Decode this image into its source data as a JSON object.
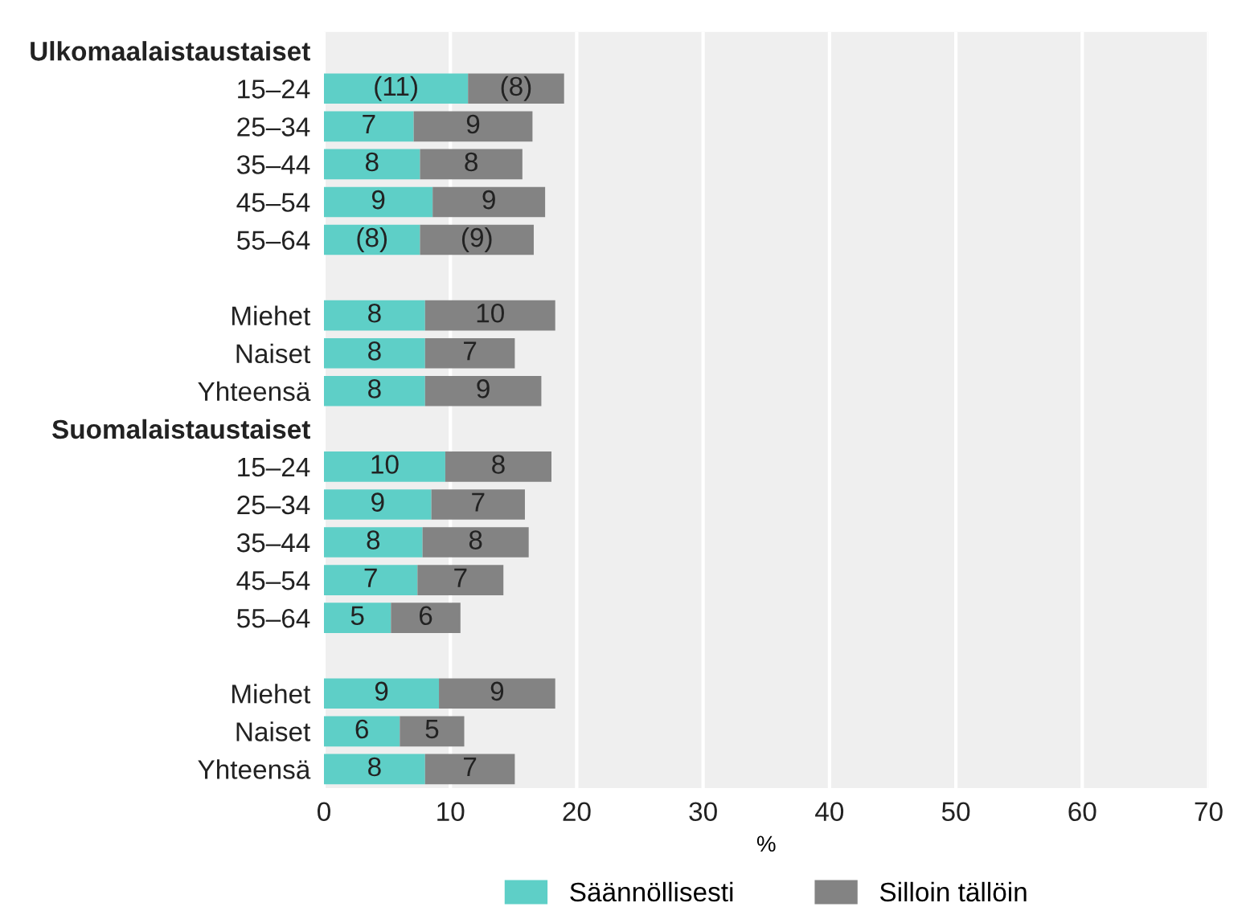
{
  "chart_data": {
    "type": "bar",
    "orientation": "horizontal",
    "stacked": true,
    "categories": [
      "Ulkomaalaistaustaiset",
      "15–24",
      "25–34",
      "35–44",
      "45–54",
      "55–64",
      null,
      "Miehet",
      "Naiset",
      "Yhteensä",
      "Suomalaistaustaiset",
      "15–24",
      "25–34",
      "35–44",
      "45–54",
      "55–64",
      null,
      "Miehet",
      "Naiset",
      "Yhteensä"
    ],
    "series": [
      {
        "name": "Säännöllisesti",
        "color": "#5ecfc7",
        "values": [
          null,
          11.4,
          7.1,
          7.6,
          8.6,
          7.6,
          null,
          8.0,
          8.0,
          8.0,
          null,
          9.6,
          8.5,
          7.8,
          7.4,
          5.3,
          null,
          9.1,
          6.0,
          8.0
        ],
        "value_labels": [
          null,
          "(11)",
          "7",
          "8",
          "9",
          "(8)",
          null,
          "8",
          "8",
          "8",
          null,
          "10",
          "9",
          "8",
          "7",
          "5",
          null,
          "9",
          "6",
          "8"
        ]
      },
      {
        "name": "Silloin tällöin",
        "color": "#838383",
        "values": [
          null,
          7.6,
          9.4,
          8.1,
          8.9,
          9.0,
          null,
          10.3,
          7.1,
          9.2,
          null,
          8.4,
          7.4,
          8.4,
          6.8,
          5.5,
          null,
          9.2,
          5.1,
          7.1
        ],
        "value_labels": [
          null,
          "(8)",
          "9",
          "8",
          "9",
          "(9)",
          null,
          "10",
          "7",
          "9",
          null,
          "8",
          "7",
          "8",
          "7",
          "6",
          null,
          "9",
          "5",
          "7"
        ]
      }
    ],
    "xlim": [
      0,
      70
    ],
    "xticks": [
      0,
      10,
      20,
      30,
      40,
      50,
      60,
      70
    ],
    "xlabel": "%",
    "grid": "x",
    "legend": "bottom"
  }
}
